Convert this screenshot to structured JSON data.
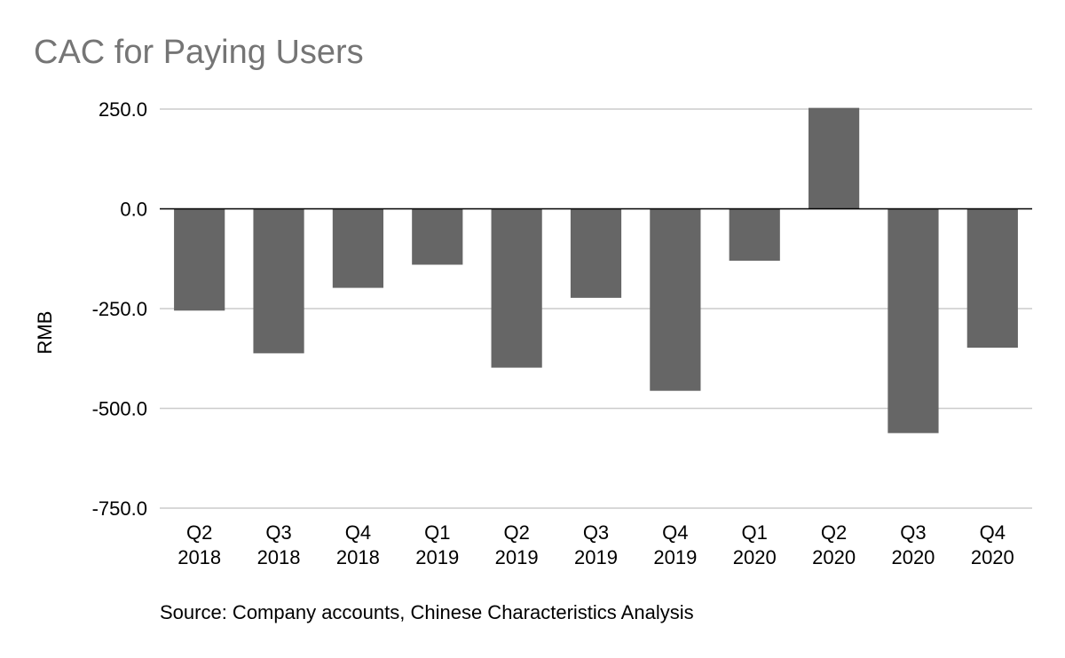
{
  "chart_data": {
    "type": "bar",
    "title": "CAC for Paying Users",
    "source": "Source: Company accounts, Chinese Characteristics Analysis",
    "xlabel": "",
    "ylabel": "RMB",
    "ylim": [
      -750,
      250
    ],
    "yticks": [
      250,
      0,
      -250,
      -500,
      -750
    ],
    "ytick_labels": [
      "250.0",
      "0.0",
      "-250.0",
      "-500.0",
      "-750.0"
    ],
    "grid": true,
    "categories": [
      [
        "Q2",
        "2018"
      ],
      [
        "Q3",
        "2018"
      ],
      [
        "Q4",
        "2018"
      ],
      [
        "Q1",
        "2019"
      ],
      [
        "Q2",
        "2019"
      ],
      [
        "Q3",
        "2019"
      ],
      [
        "Q4",
        "2019"
      ],
      [
        "Q1",
        "2020"
      ],
      [
        "Q2",
        "2020"
      ],
      [
        "Q3",
        "2020"
      ],
      [
        "Q4",
        "2020"
      ]
    ],
    "values": [
      -255,
      -362,
      -198,
      -140,
      -398,
      -223,
      -456,
      -130,
      253,
      -562,
      -348
    ],
    "colors": {
      "bar": "#666666",
      "grid": "#cccccc",
      "zero_line": "#000000",
      "title": "#757575",
      "text": "#000000"
    }
  }
}
